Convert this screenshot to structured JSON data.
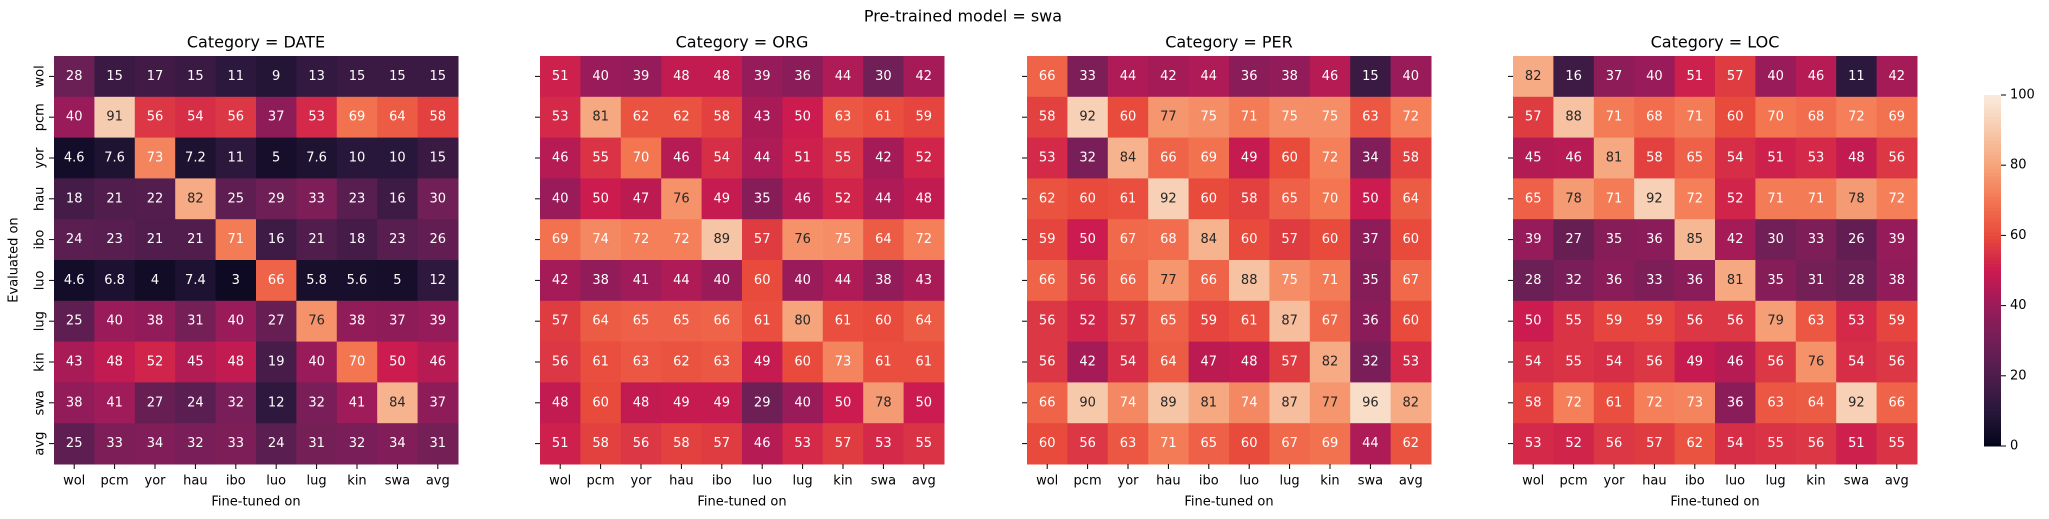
{
  "chart_data": {
    "type": "heatmap",
    "title": "Pre-trained model = swa",
    "xlabel": "Fine-tuned on",
    "ylabel": "Evaluated on",
    "x_categories": [
      "wol",
      "pcm",
      "yor",
      "hau",
      "ibo",
      "luo",
      "lug",
      "kin",
      "swa",
      "avg"
    ],
    "y_categories": [
      "wol",
      "pcm",
      "yor",
      "hau",
      "ibo",
      "luo",
      "lug",
      "kin",
      "swa",
      "avg"
    ],
    "panels": [
      {
        "title": "Category = DATE",
        "values": [
          [
            28,
            15,
            17,
            15,
            11,
            9,
            13,
            15,
            15,
            15
          ],
          [
            40,
            91,
            56,
            54,
            56,
            37,
            53,
            69,
            64,
            58
          ],
          [
            4.6,
            7.6,
            73,
            7.2,
            11,
            5,
            7.6,
            10,
            10,
            15
          ],
          [
            18,
            21,
            22,
            82,
            25,
            29,
            33,
            23,
            16,
            30
          ],
          [
            24,
            23,
            21,
            21,
            71,
            16,
            21,
            18,
            23,
            26
          ],
          [
            4.6,
            6.8,
            4,
            7.4,
            3,
            66,
            5.8,
            5.6,
            5,
            12
          ],
          [
            25,
            40,
            38,
            31,
            40,
            27,
            76,
            38,
            37,
            39
          ],
          [
            43,
            48,
            52,
            45,
            48,
            19,
            40,
            70,
            50,
            46
          ],
          [
            38,
            41,
            27,
            24,
            32,
            12,
            32,
            41,
            84,
            37
          ],
          [
            25,
            33,
            34,
            32,
            33,
            24,
            31,
            32,
            34,
            31
          ]
        ]
      },
      {
        "title": "Category = ORG",
        "values": [
          [
            51,
            40,
            39,
            48,
            48,
            39,
            36,
            44,
            30,
            42
          ],
          [
            53,
            81,
            62,
            62,
            58,
            43,
            50,
            63,
            61,
            59
          ],
          [
            46,
            55,
            70,
            46,
            54,
            44,
            51,
            55,
            42,
            52
          ],
          [
            40,
            50,
            47,
            76,
            49,
            35,
            46,
            52,
            44,
            48
          ],
          [
            69,
            74,
            72,
            72,
            89,
            57,
            76,
            75,
            64,
            72
          ],
          [
            42,
            38,
            41,
            44,
            40,
            60,
            40,
            44,
            38,
            43
          ],
          [
            57,
            64,
            65,
            65,
            66,
            61,
            80,
            61,
            60,
            64
          ],
          [
            56,
            61,
            63,
            62,
            63,
            49,
            60,
            73,
            61,
            61
          ],
          [
            48,
            60,
            48,
            49,
            49,
            29,
            40,
            50,
            78,
            50
          ],
          [
            51,
            58,
            56,
            58,
            57,
            46,
            53,
            57,
            53,
            55
          ]
        ]
      },
      {
        "title": "Category = PER",
        "values": [
          [
            66,
            33,
            44,
            42,
            44,
            36,
            38,
            46,
            15,
            40
          ],
          [
            58,
            92,
            60,
            77,
            75,
            71,
            75,
            75,
            63,
            72
          ],
          [
            53,
            32,
            84,
            66,
            69,
            49,
            60,
            72,
            34,
            58
          ],
          [
            62,
            60,
            61,
            92,
            60,
            58,
            65,
            70,
            50,
            64
          ],
          [
            59,
            50,
            67,
            68,
            84,
            60,
            57,
            60,
            37,
            60
          ],
          [
            66,
            56,
            66,
            77,
            66,
            88,
            75,
            71,
            35,
            67
          ],
          [
            56,
            52,
            57,
            65,
            59,
            61,
            87,
            67,
            36,
            60
          ],
          [
            56,
            42,
            54,
            64,
            47,
            48,
            57,
            82,
            32,
            53
          ],
          [
            66,
            90,
            74,
            89,
            81,
            74,
            87,
            77,
            96,
            82
          ],
          [
            60,
            56,
            63,
            71,
            65,
            60,
            67,
            69,
            44,
            62
          ]
        ]
      },
      {
        "title": "Category = LOC",
        "values": [
          [
            82,
            16,
            37,
            40,
            51,
            57,
            40,
            46,
            11,
            42
          ],
          [
            57,
            88,
            71,
            68,
            71,
            60,
            70,
            68,
            72,
            69
          ],
          [
            45,
            46,
            81,
            58,
            65,
            54,
            51,
            53,
            48,
            56
          ],
          [
            65,
            78,
            71,
            92,
            72,
            52,
            71,
            71,
            78,
            72
          ],
          [
            39,
            27,
            35,
            36,
            85,
            42,
            30,
            33,
            26,
            39
          ],
          [
            28,
            32,
            36,
            33,
            36,
            81,
            35,
            31,
            28,
            38
          ],
          [
            50,
            55,
            59,
            59,
            56,
            56,
            79,
            63,
            53,
            59
          ],
          [
            54,
            55,
            54,
            56,
            49,
            46,
            56,
            76,
            54,
            56
          ],
          [
            58,
            72,
            61,
            72,
            73,
            36,
            63,
            64,
            92,
            66
          ],
          [
            53,
            52,
            56,
            57,
            62,
            54,
            55,
            56,
            51,
            55
          ]
        ]
      }
    ],
    "colormap": [
      "#03051a",
      "#28173a",
      "#4c1d4b",
      "#711f57",
      "#9a1b5a",
      "#cb1b4f",
      "#e84a3c",
      "#f37651",
      "#f6a47b",
      "#f6c9ab",
      "#faebdd"
    ],
    "clim": [
      0,
      100
    ],
    "cticks": [
      0,
      20,
      40,
      60,
      80,
      100
    ]
  }
}
